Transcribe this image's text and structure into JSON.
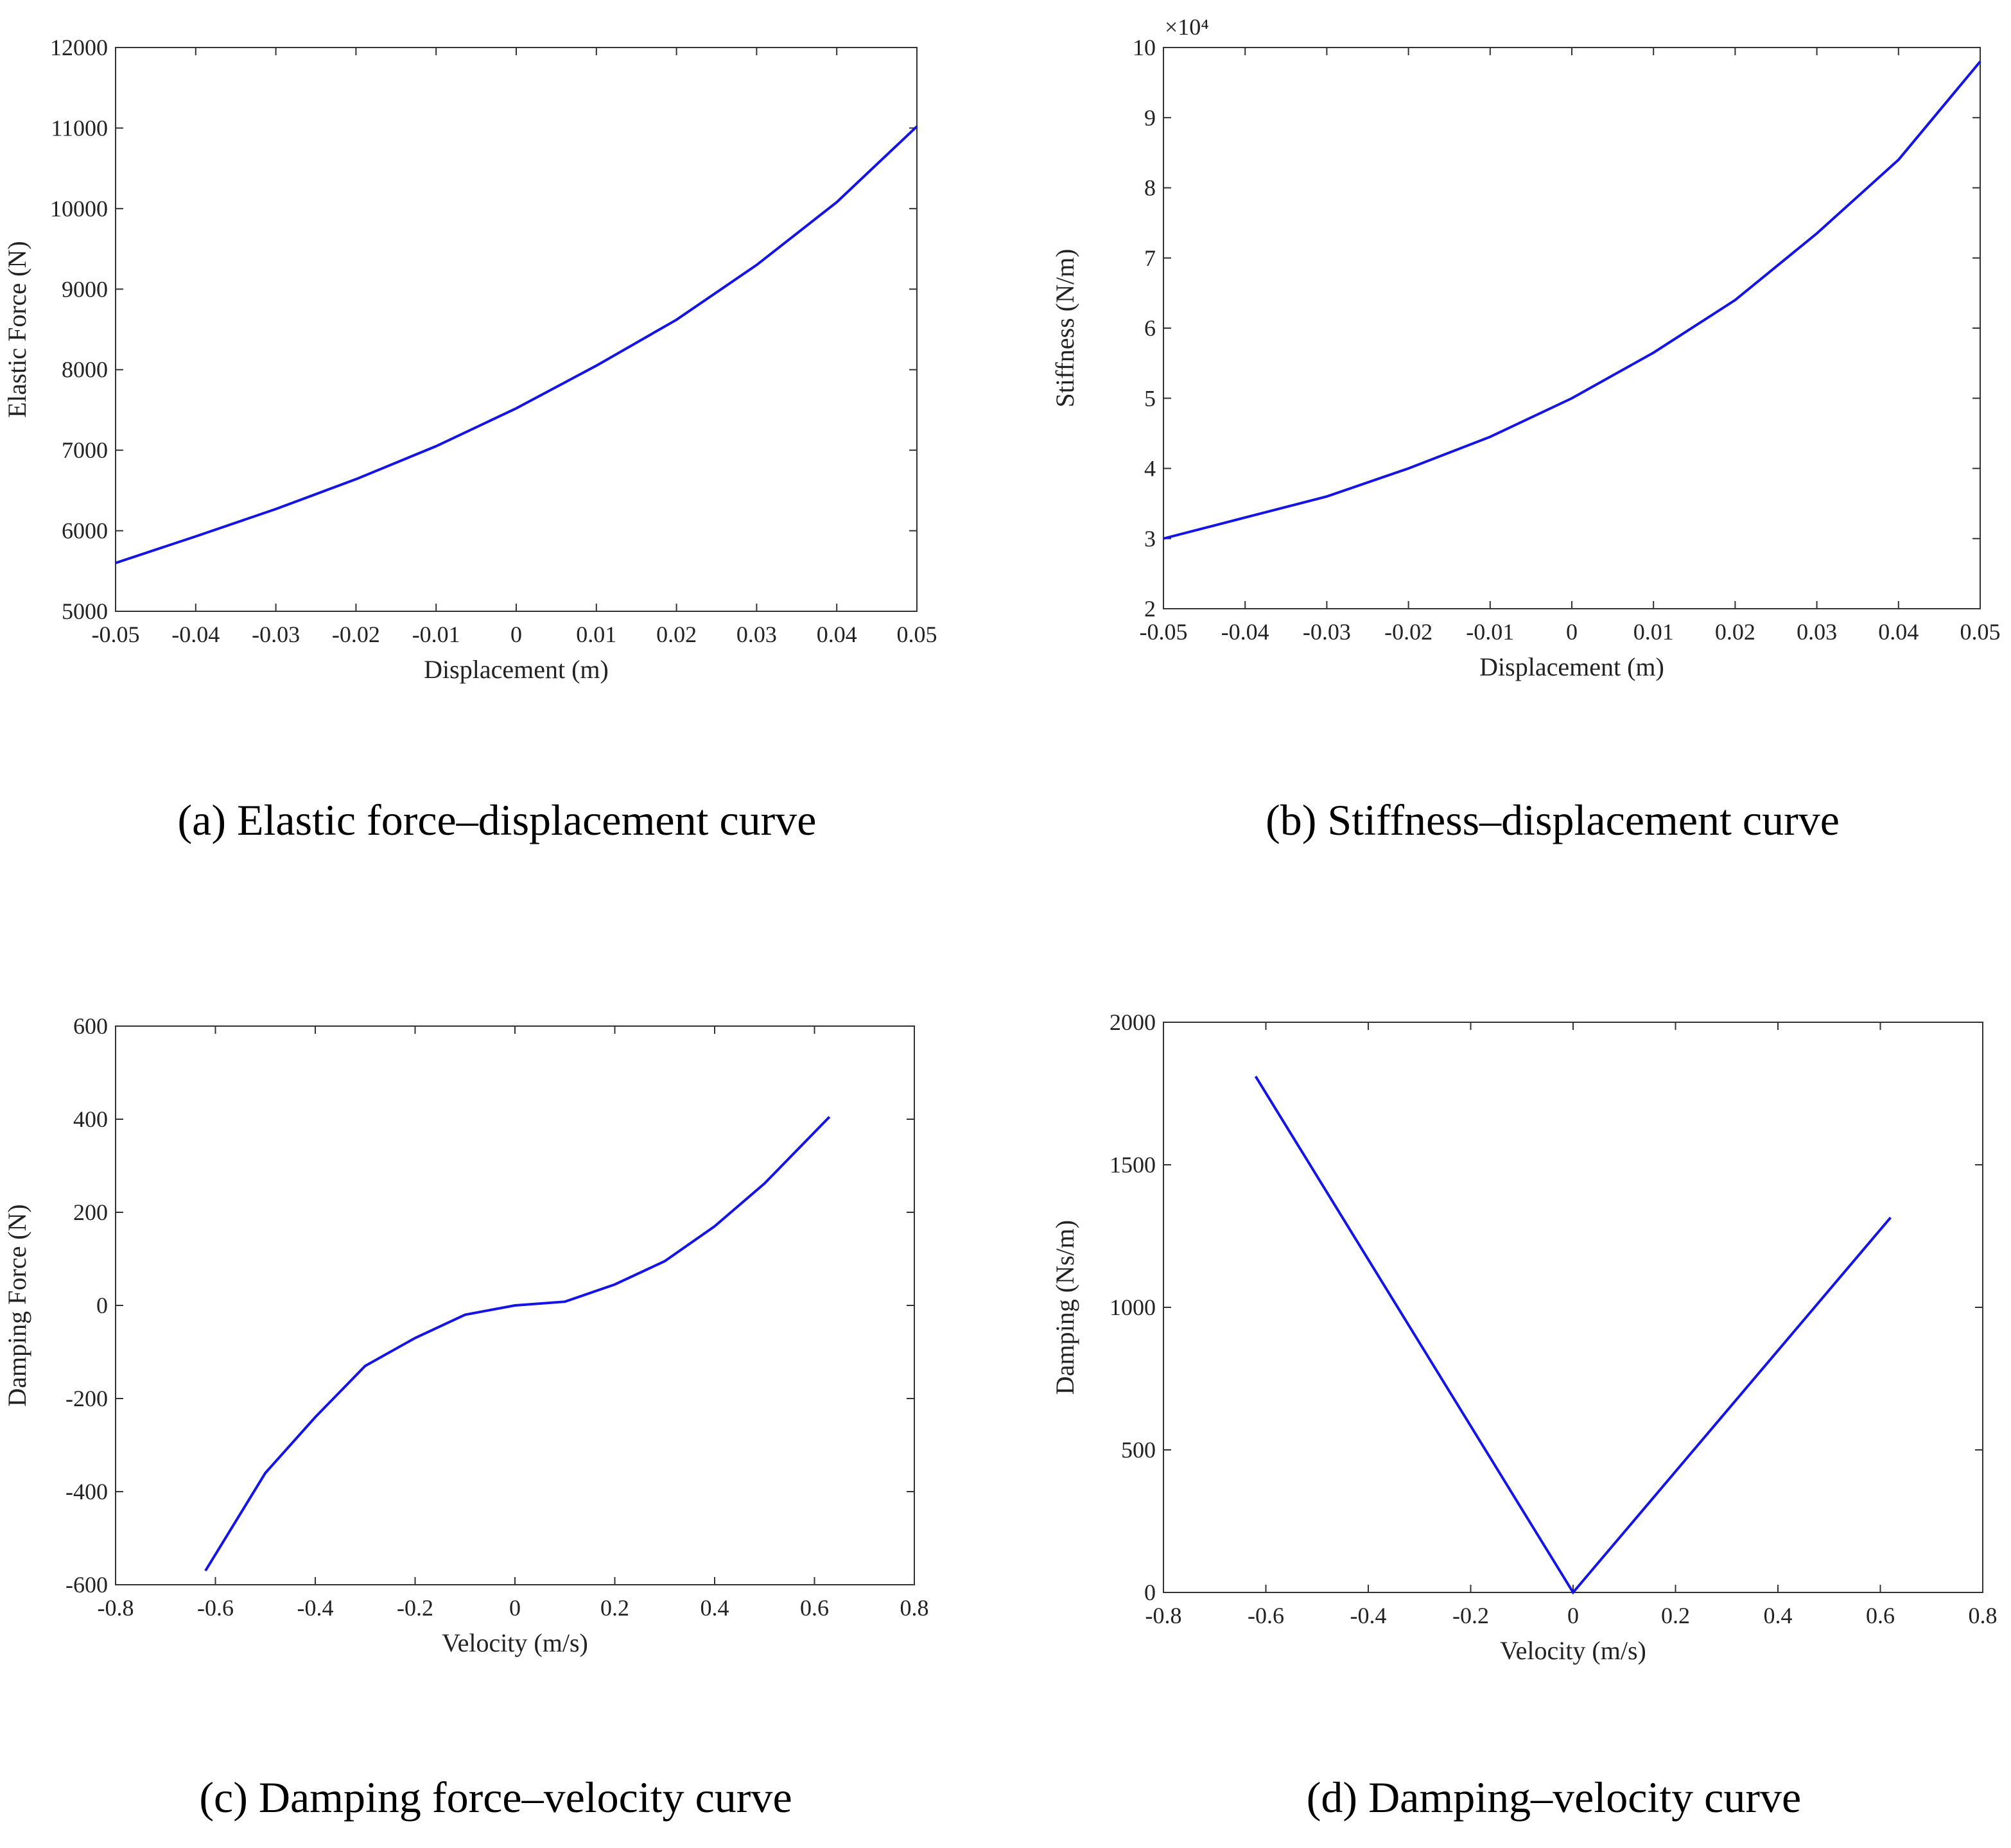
{
  "chart_data": [
    {
      "type": "line",
      "caption": "(a) Elastic force–displacement curve",
      "x_label": "Displacement (m)",
      "y_label": "Elastic Force (N)",
      "x": [
        -0.05,
        -0.04,
        -0.03,
        -0.02,
        -0.01,
        0,
        0.01,
        0.02,
        0.03,
        0.04,
        0.05
      ],
      "values": [
        5600,
        5930,
        6270,
        6640,
        7050,
        7520,
        8050,
        8620,
        9300,
        10080,
        11020
      ],
      "color": "#1414e6",
      "xlim": [
        -0.05,
        0.05
      ],
      "xticks": [
        -0.05,
        -0.04,
        -0.03,
        -0.02,
        -0.01,
        0,
        0.01,
        0.02,
        0.03,
        0.04,
        0.05
      ],
      "ylim": [
        5000,
        12000
      ],
      "yticks": [
        5000,
        6000,
        7000,
        8000,
        9000,
        10000,
        11000,
        12000
      ],
      "grid": false
    },
    {
      "type": "line",
      "caption": "(b) Stiffness–displacement curve",
      "x_label": "Displacement (m)",
      "y_label": "Stiffness (N/m)",
      "y_multiplier": "×10⁴",
      "x": [
        -0.05,
        -0.04,
        -0.03,
        -0.02,
        -0.01,
        0,
        0.01,
        0.02,
        0.03,
        0.04,
        0.05
      ],
      "values": [
        3.0,
        3.3,
        3.6,
        4.0,
        4.45,
        5.0,
        5.65,
        6.4,
        7.35,
        8.4,
        9.8
      ],
      "color": "#1414e6",
      "xlim": [
        -0.05,
        0.05
      ],
      "xticks": [
        -0.05,
        -0.04,
        -0.03,
        -0.02,
        -0.01,
        0,
        0.01,
        0.02,
        0.03,
        0.04,
        0.05
      ],
      "ylim": [
        2,
        10
      ],
      "yticks": [
        2,
        3,
        4,
        5,
        6,
        7,
        8,
        9,
        10
      ],
      "grid": false
    },
    {
      "type": "line",
      "caption": "(c) Damping force–velocity curve",
      "x_label": "Velocity (m/s)",
      "y_label": "Damping Force (N)",
      "x": [
        -0.62,
        -0.5,
        -0.4,
        -0.3,
        -0.2,
        -0.1,
        0,
        0.1,
        0.2,
        0.3,
        0.4,
        0.5,
        0.63
      ],
      "values": [
        -570,
        -360,
        -240,
        -130,
        -70,
        -20,
        0,
        8,
        45,
        95,
        170,
        262,
        405
      ],
      "color": "#1414e6",
      "xlim": [
        -0.8,
        0.8
      ],
      "xticks": [
        -0.8,
        -0.6,
        -0.4,
        -0.2,
        0,
        0.2,
        0.4,
        0.6,
        0.8
      ],
      "ylim": [
        -600,
        600
      ],
      "yticks": [
        -600,
        -400,
        -200,
        0,
        200,
        400,
        600
      ],
      "grid": false
    },
    {
      "type": "line",
      "caption": "(d) Damping–velocity curve",
      "x_label": "Velocity (m/s)",
      "y_label": "Damping (Ns/m)",
      "x": [
        -0.62,
        0,
        0.62
      ],
      "values": [
        1810,
        0,
        1315
      ],
      "color": "#1414e6",
      "xlim": [
        -0.8,
        0.8
      ],
      "xticks": [
        -0.8,
        -0.6,
        -0.4,
        -0.2,
        0,
        0.2,
        0.4,
        0.6,
        0.8
      ],
      "ylim": [
        0,
        2000
      ],
      "yticks": [
        0,
        500,
        1000,
        1500,
        2000
      ],
      "grid": false
    }
  ]
}
